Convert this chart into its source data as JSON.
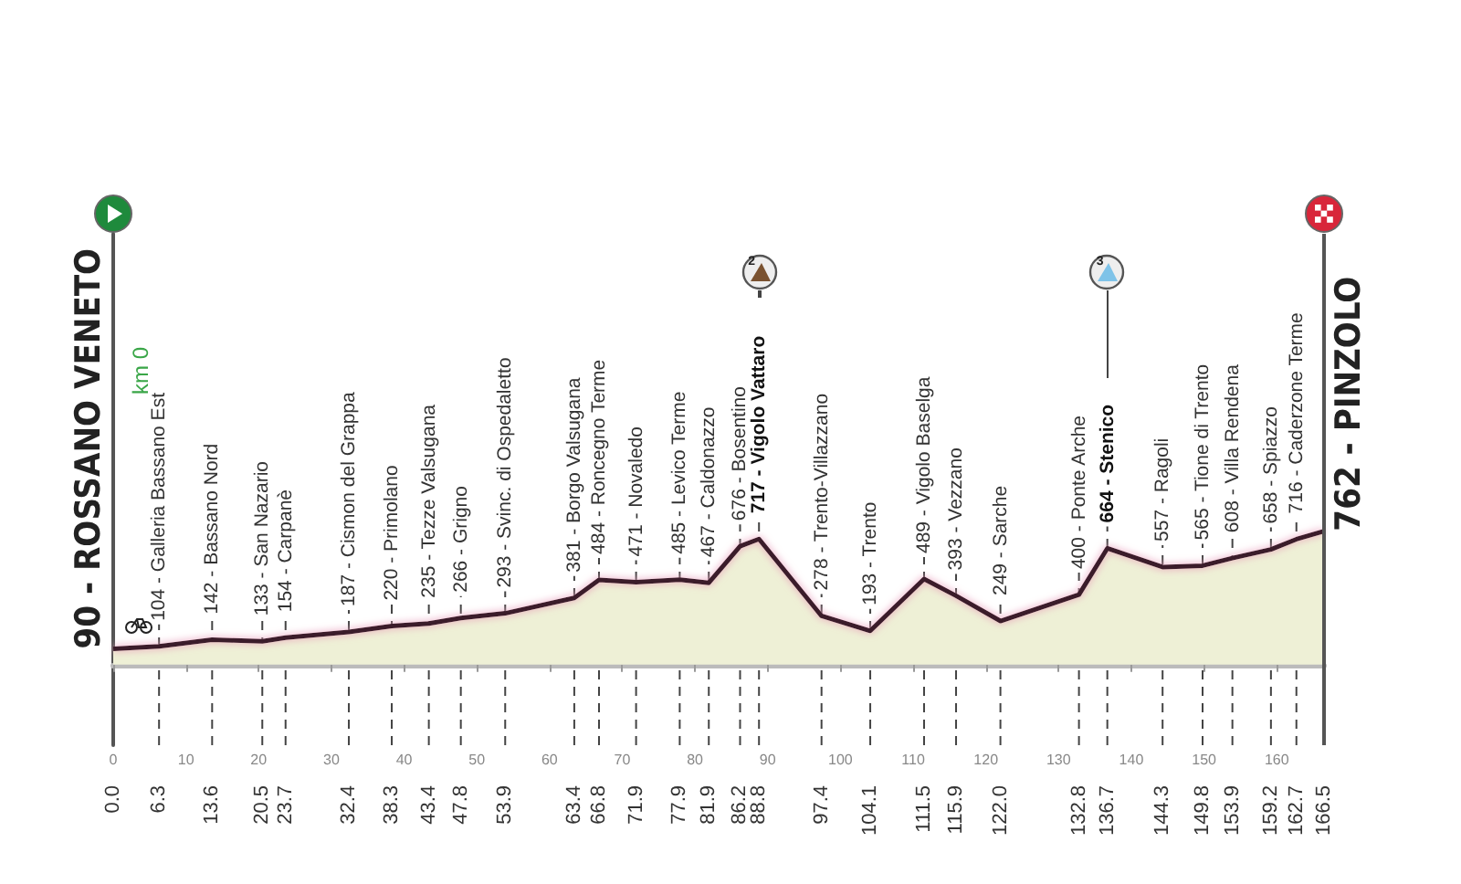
{
  "chart_data": {
    "type": "area",
    "x": [
      0,
      6.3,
      13.6,
      20.5,
      23.7,
      32.4,
      38.3,
      43.4,
      47.8,
      53.9,
      63.4,
      66.8,
      71.9,
      77.9,
      81.9,
      86.2,
      88.8,
      97.4,
      104.1,
      111.5,
      115.9,
      122,
      132.8,
      136.7,
      144.3,
      149.8,
      153.9,
      159.2,
      162.7,
      166.5
    ],
    "series": [
      {
        "color": "#3b1c2b",
        "values": [
          90,
          104,
          142,
          133,
          154,
          187,
          220,
          235,
          266,
          293,
          381,
          484,
          471,
          485,
          467,
          676,
          717,
          278,
          193,
          489,
          393,
          249,
          400,
          664,
          557,
          565,
          608,
          658,
          716,
          762
        ],
        "value_labels": [
          "90 - ROSSANO VENETO",
          "104 - Galleria Bassano Est",
          "142 - Bassano Nord",
          "133 - San Nazario",
          "154 - Carpanè",
          "187 - Cismon del Grappa",
          "220 - Primolano",
          "235 - Tezze Valsugana",
          "266 - Grigno",
          "293 - Svinc. di Ospedaletto",
          "381 - Borgo Valsugana",
          "484 - Roncegno Terme",
          "471 - Novaledo",
          "485 - Levico Terme",
          "467 - Caldonazzo",
          "676 - Bosentino",
          "717 - Vigolo Vattaro",
          "278 - Trento-Villazzano",
          "193 - Trento",
          "489 - Vigolo Baselga",
          "393 - Vezzano",
          "249 - Sarche",
          "400 - Ponte Arche",
          "664 - Stenico",
          "557 - Ragoli",
          "565 - Tione di Trento",
          "608 - Villa Rendena",
          "658 - Spiazzo",
          "716 - Caderzone Terme",
          "762 - PINZOLO"
        ]
      }
    ],
    "xlim": [
      0,
      166.5
    ],
    "xticks": [
      0,
      10,
      20,
      30,
      40,
      50,
      60,
      70,
      80,
      90,
      100,
      110,
      120,
      130,
      140,
      150,
      160
    ],
    "x2lim": [
      0,
      166.5
    ],
    "x2ticks": [
      {
        "value": 0,
        "label": "0.0"
      },
      6.3,
      13.6,
      20.5,
      23.7,
      32.4,
      38.3,
      43.4,
      47.8,
      53.9,
      63.4,
      66.8,
      71.9,
      77.9,
      81.9,
      86.2,
      88.8,
      97.4,
      104.1,
      111.5,
      115.9,
      {
        "value": 122,
        "label": "122.0"
      },
      132.8,
      136.7,
      144.3,
      149.8,
      153.9,
      159.2,
      162.7,
      166.5
    ],
    "ylim": [
      -460,
      2460
    ],
    "tick_labels": "x",
    "marker": "none",
    "annotations": [
      "km 0",
      "2",
      "3"
    ]
  }
}
